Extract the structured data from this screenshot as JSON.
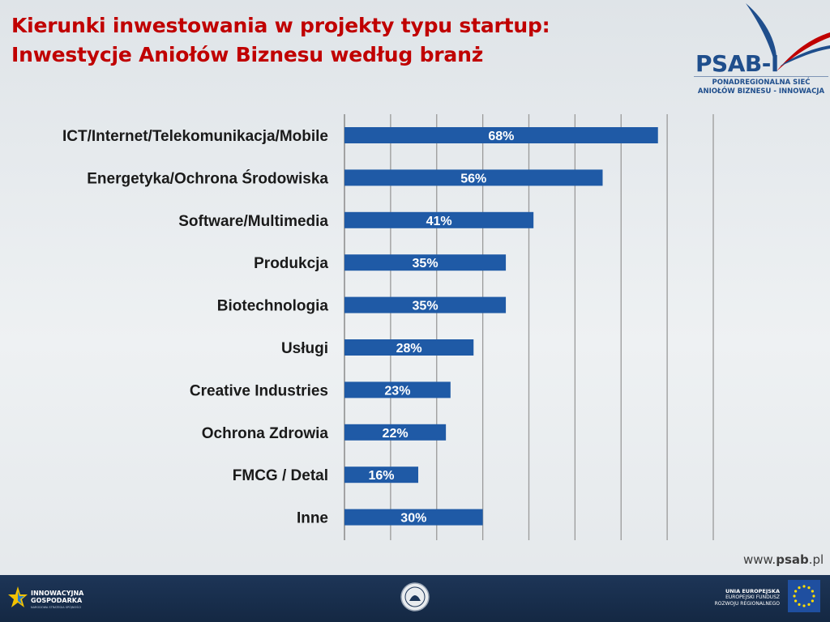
{
  "title": {
    "line1": "Kierunki inwestowania w projekty typu startup:",
    "line2": "Inwestycje Aniołów Biznesu  według branż"
  },
  "logo": {
    "name": "PSAB-I",
    "subtitle_line1": "PONADREGIONALNA SIEĆ",
    "subtitle_line2": "ANIOŁÓW BIZNESU - INNOWACJA"
  },
  "colors": {
    "title": "#c00000",
    "bar": "#1f5aa6",
    "footer": "#1d3557"
  },
  "chart_data": {
    "type": "bar",
    "orientation": "horizontal",
    "categories": [
      "ICT/Internet/Telekomunikacja/Mobile",
      "Energetyka/Ochrona Środowiska",
      "Software/Multimedia",
      "Produkcja",
      "Biotechnologia",
      "Usługi",
      "Creative Industries",
      "Ochrona Zdrowia",
      "FMCG / Detal",
      "Inne"
    ],
    "values": [
      68,
      56,
      41,
      35,
      35,
      28,
      23,
      22,
      16,
      30
    ],
    "labels": [
      "68%",
      "56%",
      "41%",
      "35%",
      "35%",
      "28%",
      "23%",
      "22%",
      "16%",
      "30%"
    ],
    "unit": "%",
    "xlim": [
      0,
      80
    ],
    "grid": true
  },
  "website": {
    "prefix": "www.",
    "bold": "psab",
    "suffix": ".pl"
  },
  "footer": {
    "left_line1": "INNOWACYJNA",
    "left_line2": "GOSPODARKA",
    "left_line3": "NARODOWA STRATEGIA SPÓJNOŚCI",
    "right_line1": "UNIA EUROPEJSKA",
    "right_line2": "EUROPEJSKI FUNDUSZ",
    "right_line3": "ROZWOJU REGIONALNEGO"
  }
}
